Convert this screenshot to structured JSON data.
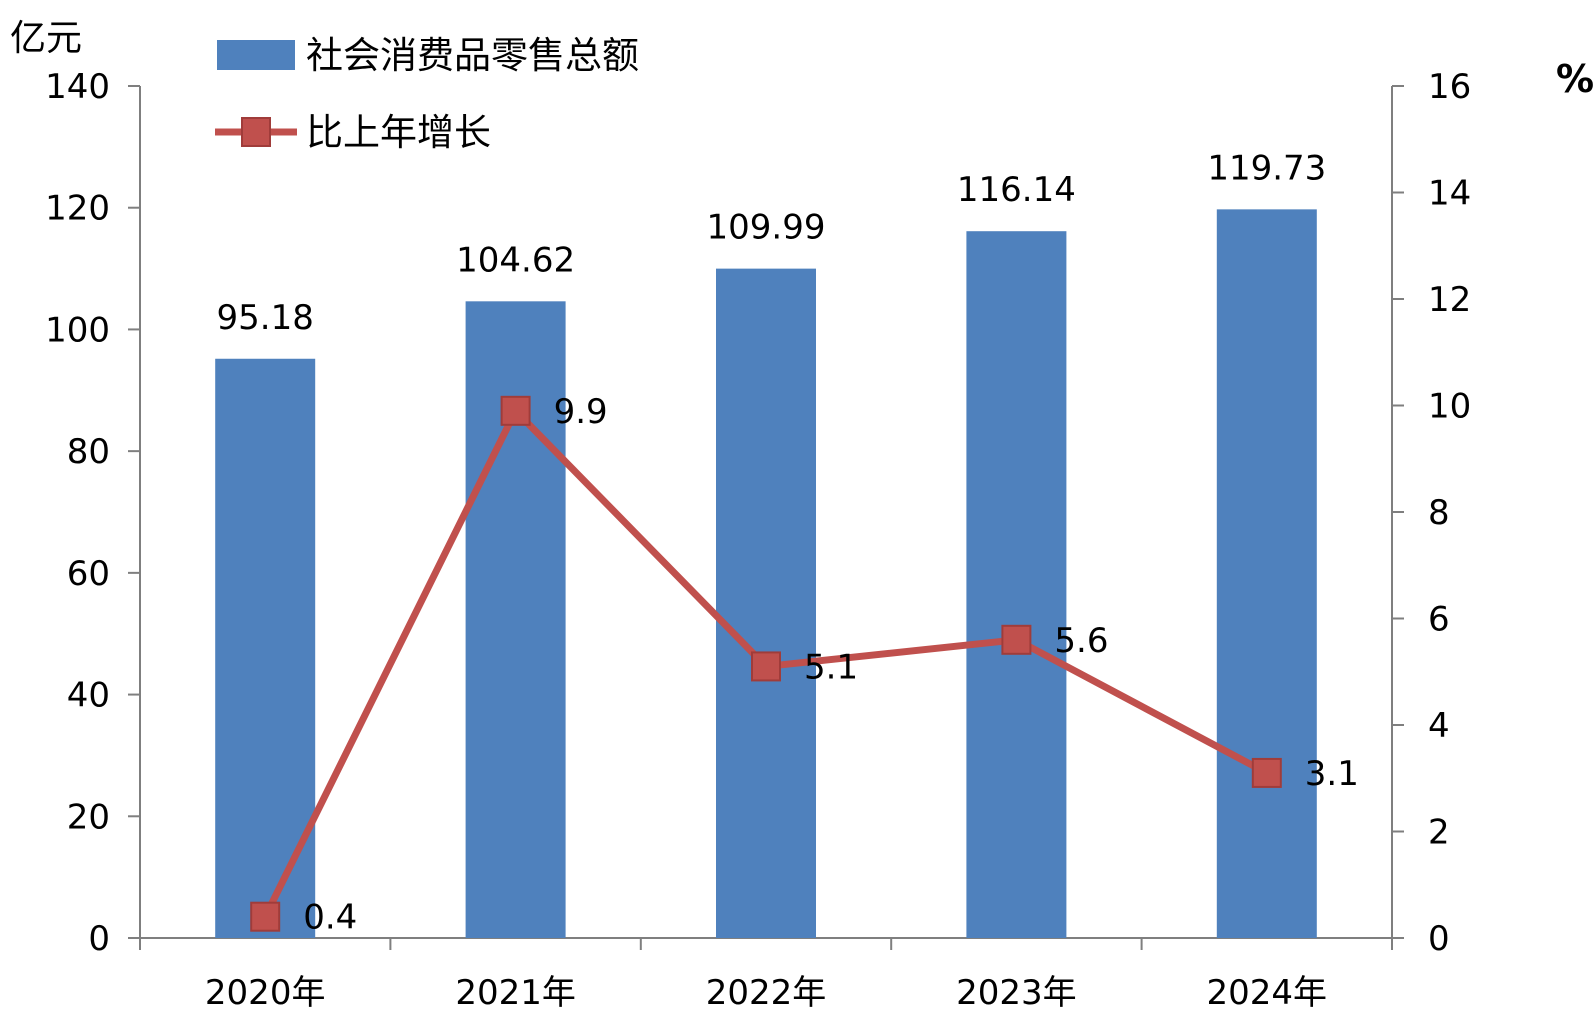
{
  "chart_data": {
    "type": "bar",
    "categories": [
      "2020年",
      "2021年",
      "2022年",
      "2023年",
      "2024年"
    ],
    "series": [
      {
        "name": "社会消费品零售总额",
        "type": "bar",
        "axis": "left",
        "color": "#4f81bd",
        "values": [
          95.18,
          104.62,
          109.99,
          116.14,
          119.73
        ],
        "labels": [
          "95.18",
          "104.62",
          "109.99",
          "116.14",
          "119.73"
        ]
      },
      {
        "name": "比上年增长",
        "type": "line",
        "axis": "right",
        "color": "#c0504d",
        "marker": "square",
        "values": [
          0.4,
          9.9,
          5.1,
          5.6,
          3.1
        ],
        "labels": [
          "0.4",
          "9.9",
          "5.1",
          "5.6",
          "3.1"
        ]
      }
    ],
    "y_left": {
      "unit": "亿元",
      "range": [
        0,
        140
      ],
      "ticks": [
        0,
        20,
        40,
        60,
        80,
        100,
        120,
        140
      ],
      "tick_labels": [
        "0",
        "20",
        "40",
        "60",
        "80",
        "100",
        "120",
        "140"
      ]
    },
    "y_right": {
      "unit": "%",
      "range": [
        0,
        16
      ],
      "ticks": [
        0,
        2,
        4,
        6,
        8,
        10,
        12,
        14,
        16
      ],
      "tick_labels": [
        "0",
        "2",
        "4",
        "6",
        "8",
        "10",
        "12",
        "14",
        "16"
      ]
    },
    "grid": false,
    "legend": "top-left"
  }
}
